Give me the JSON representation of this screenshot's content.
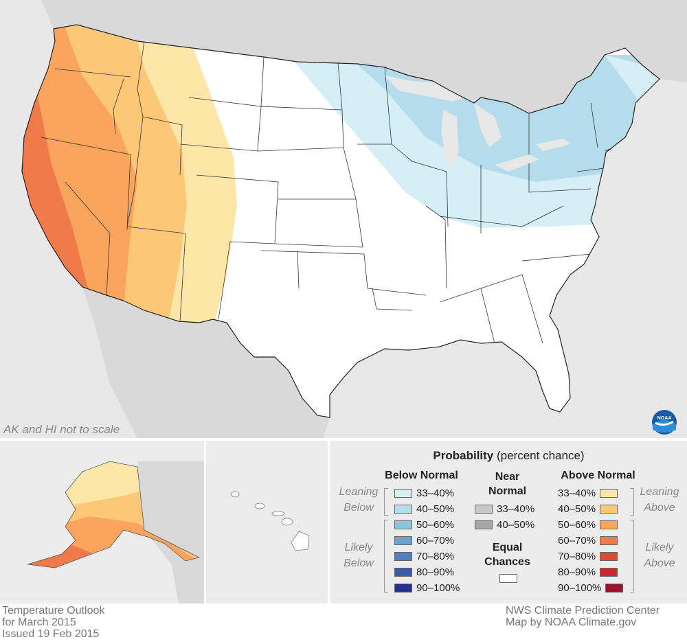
{
  "map": {
    "scale_note": "AK and HI not to scale",
    "logo_text": "NOAA"
  },
  "colors": {
    "land": "#d9d9d9",
    "ocean": "#e8e8e8",
    "equal_chances": "#ffffff",
    "below_33_40": "#d6eef6",
    "below_40_50": "#b4dcea",
    "above_33_40": "#fde6a8",
    "above_40_50": "#fcc878",
    "above_50_60": "#f9a55e",
    "above_60_70": "#f17a4a"
  },
  "legend": {
    "title_bold": "Probability",
    "title_rest": "(percent chance)",
    "below_normal": {
      "heading": "Below Normal",
      "leaning_label_1": "Leaning",
      "leaning_label_2": "Below",
      "likely_label_1": "Likely",
      "likely_label_2": "Below",
      "items": [
        {
          "label": "33–40%",
          "color": "#d6eef6"
        },
        {
          "label": "40–50%",
          "color": "#b4dcea"
        },
        {
          "label": "50–60%",
          "color": "#8cc4dd"
        },
        {
          "label": "60–70%",
          "color": "#6aa3cf"
        },
        {
          "label": "70–80%",
          "color": "#4f7fc0"
        },
        {
          "label": "80–90%",
          "color": "#3c59ab"
        },
        {
          "label": "90–100%",
          "color": "#27308f"
        }
      ]
    },
    "near_normal": {
      "heading_1": "Near",
      "heading_2": "Normal",
      "items": [
        {
          "label": "33–40%",
          "color": "#c8c8c8"
        },
        {
          "label": "40–50%",
          "color": "#a6a6a6"
        }
      ],
      "equal_1": "Equal",
      "equal_2": "Chances",
      "equal_color": "#ffffff"
    },
    "above_normal": {
      "heading": "Above Normal",
      "leaning_label_1": "Leaning",
      "leaning_label_2": "Above",
      "likely_label_1": "Likely",
      "likely_label_2": "Above",
      "items": [
        {
          "label": "33–40%",
          "color": "#fde6a8"
        },
        {
          "label": "40–50%",
          "color": "#fcc878"
        },
        {
          "label": "50–60%",
          "color": "#f9a55e"
        },
        {
          "label": "60–70%",
          "color": "#f17a4a"
        },
        {
          "label": "70–80%",
          "color": "#e04a35"
        },
        {
          "label": "80–90%",
          "color": "#c82a2a"
        },
        {
          "label": "90–100%",
          "color": "#a0102a"
        }
      ]
    }
  },
  "footer": {
    "left_1": "Temperature Outlook",
    "left_2": "for March 2015",
    "left_3": "Issued 19 Feb 2015",
    "right_1": "NWS Climate Prediction Center",
    "right_2": "Map by NOAA Climate.gov"
  }
}
